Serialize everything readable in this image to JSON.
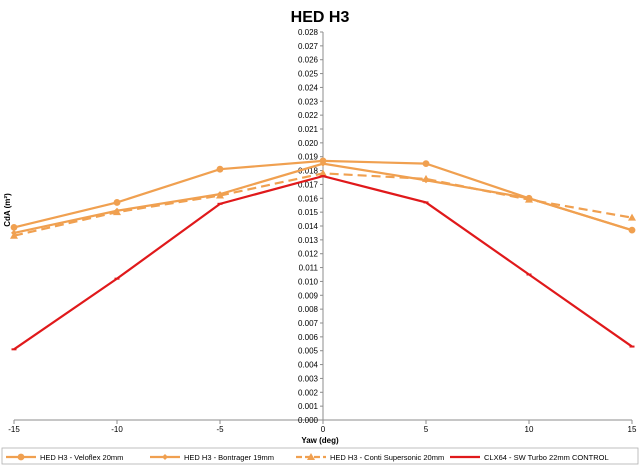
{
  "chart_data": {
    "type": "line",
    "title": "HED H3",
    "xlabel": "Yaw (deg)",
    "ylabel": "CdA (m²)",
    "x": [
      -15,
      -10,
      -5,
      0,
      5,
      10,
      15
    ],
    "xlim": [
      -15,
      15
    ],
    "ylim": [
      0,
      0.028
    ],
    "x_ticks": [
      "-15",
      "-10",
      "-5",
      "0",
      "5",
      "10",
      "15"
    ],
    "y_ticks": [
      "0.000",
      "0.001",
      "0.002",
      "0.003",
      "0.004",
      "0.005",
      "0.006",
      "0.007",
      "0.008",
      "0.009",
      "0.010",
      "0.011",
      "0.012",
      "0.013",
      "0.014",
      "0.015",
      "0.016",
      "0.017",
      "0.018",
      "0.019",
      "0.020",
      "0.021",
      "0.022",
      "0.023",
      "0.024",
      "0.025",
      "0.026",
      "0.027",
      "0.028"
    ],
    "grid": false,
    "legend_position": "bottom",
    "series": [
      {
        "name": "HED H3 - Veloflex 20mm",
        "values": [
          0.0139,
          0.0157,
          0.0181,
          0.0187,
          0.0185,
          0.016,
          0.0137
        ],
        "color": "#f0a050",
        "marker": "circle",
        "dash": "solid"
      },
      {
        "name": "HED H3 - Bontrager 19mm",
        "values": [
          0.0135,
          0.0151,
          0.0163,
          0.0185,
          0.0173,
          0.016,
          0.0137
        ],
        "color": "#f0a050",
        "marker": "diamond",
        "dash": "solid"
      },
      {
        "name": "HED H3 - Conti Supersonic 20mm",
        "values": [
          0.0133,
          0.015,
          0.0162,
          0.0178,
          0.0174,
          0.0159,
          0.0146
        ],
        "color": "#f0a050",
        "marker": "triangle",
        "dash": "dashed"
      },
      {
        "name": "CLX64 - SW Turbo 22mm CONTROL",
        "values": [
          0.0051,
          0.0102,
          0.0156,
          0.0176,
          0.0157,
          0.0105,
          0.0053
        ],
        "color": "#e0191b",
        "marker": "dash",
        "dash": "solid"
      }
    ]
  }
}
